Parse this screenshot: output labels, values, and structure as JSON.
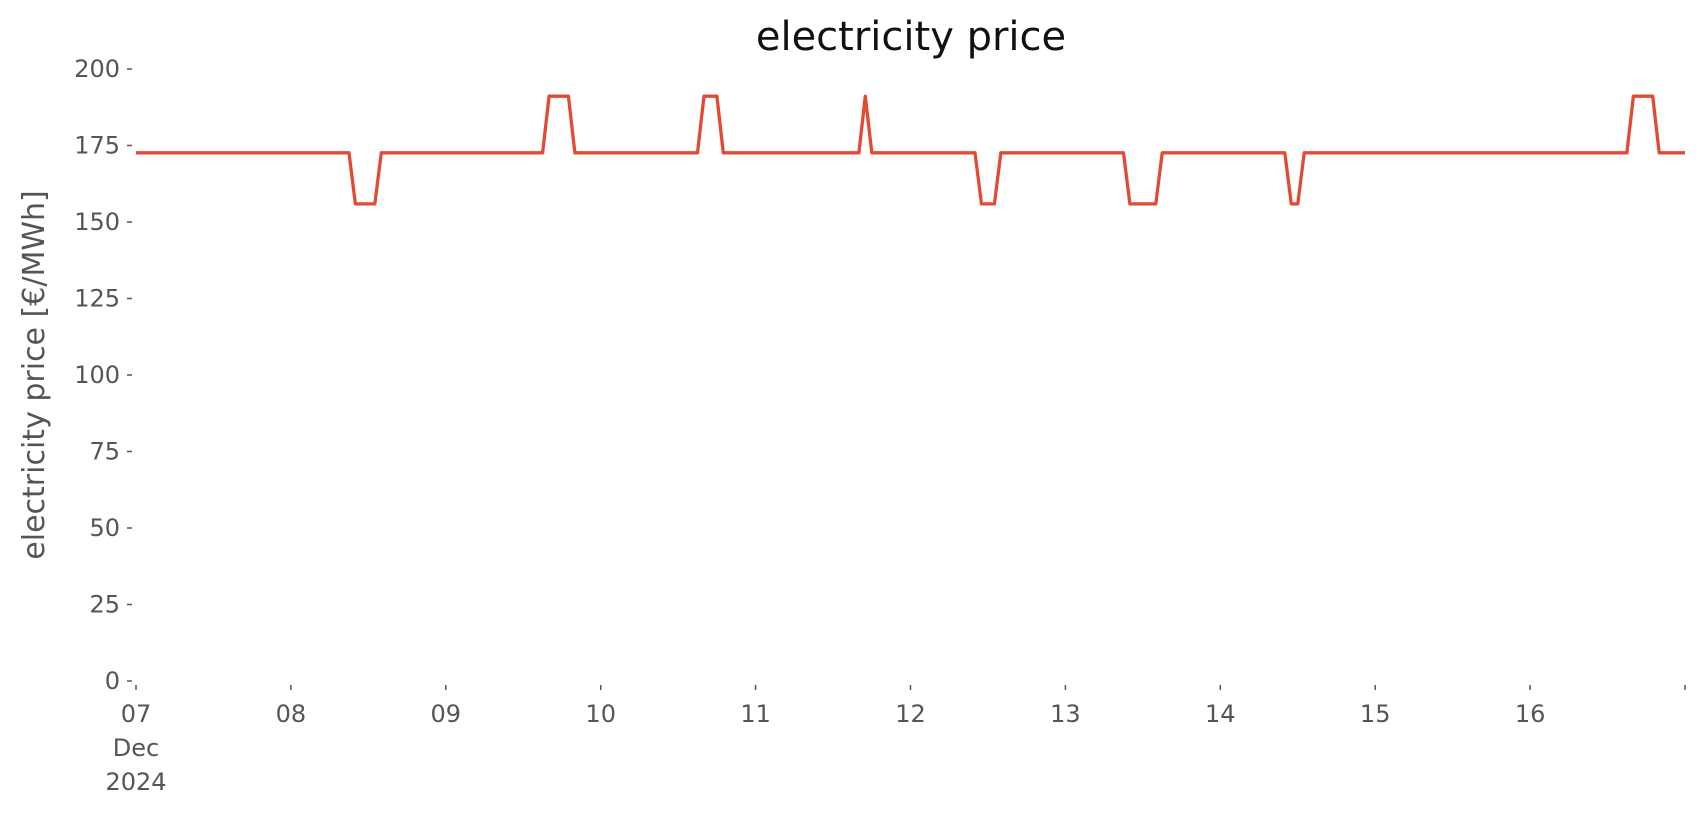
{
  "chart_data": {
    "type": "line",
    "title": "electricity price",
    "ylabel": "electricity price [€/MWh]",
    "x": [
      0,
      33,
      34,
      37,
      38,
      63,
      64,
      67,
      68,
      87,
      88,
      90,
      91,
      112,
      113,
      114,
      130,
      131,
      133,
      134,
      153,
      154,
      158,
      159,
      178,
      179,
      180,
      181,
      231,
      232,
      235,
      236,
      240
    ],
    "series": [
      {
        "name": "electricity price",
        "color": "#e24a33",
        "values": [
          172.6,
          172.6,
          155.9,
          155.9,
          172.6,
          172.6,
          191.1,
          191.1,
          172.6,
          172.6,
          191.1,
          191.1,
          172.6,
          172.6,
          191.1,
          172.6,
          172.6,
          155.9,
          155.9,
          172.6,
          172.6,
          155.9,
          155.9,
          172.6,
          172.6,
          155.9,
          155.9,
          172.6,
          172.6,
          191.1,
          191.1,
          172.6,
          172.6
        ]
      }
    ],
    "xlim": [
      0,
      240
    ],
    "xticks": [
      {
        "value": 0,
        "label": "07\nDec\n2024"
      },
      {
        "value": 24,
        "label": "08"
      },
      {
        "value": 48,
        "label": "09"
      },
      {
        "value": 72,
        "label": "10"
      },
      {
        "value": 96,
        "label": "11"
      },
      {
        "value": 120,
        "label": "12"
      },
      {
        "value": 144,
        "label": "13"
      },
      {
        "value": 168,
        "label": "14"
      },
      {
        "value": 192,
        "label": "15"
      },
      {
        "value": 216,
        "label": "16"
      },
      {
        "value": 240,
        "label": null
      }
    ],
    "ylim": [
      0,
      200
    ],
    "yticks": [
      0,
      25,
      50,
      75,
      100,
      125,
      150,
      175,
      200
    ],
    "grid": false
  }
}
